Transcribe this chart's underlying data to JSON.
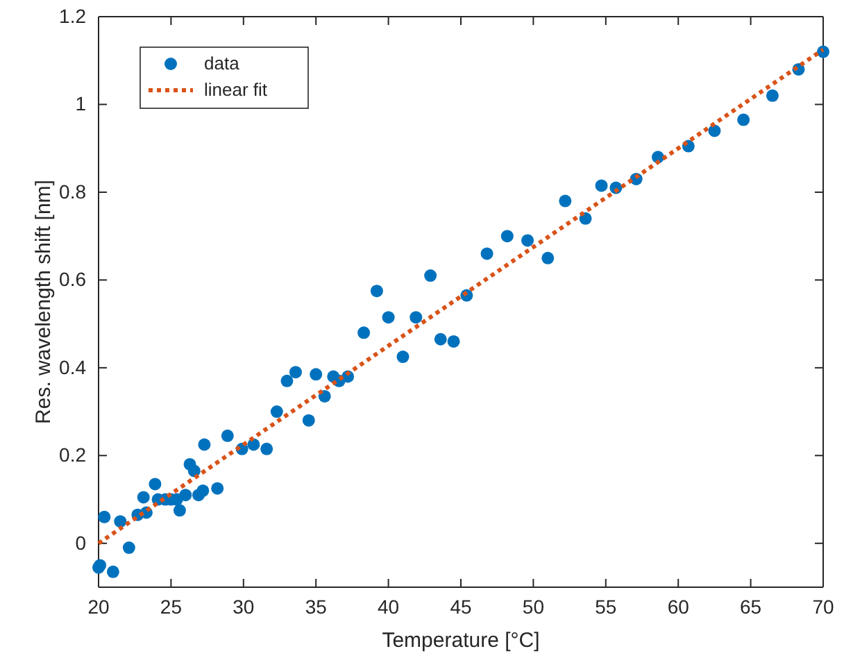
{
  "chart_data": {
    "type": "scatter",
    "xlabel": "Temperature [°C]",
    "ylabel": "Res. wavelength shift [nm]",
    "xlim": [
      20,
      70
    ],
    "ylim": [
      -0.1,
      1.2
    ],
    "xticks": [
      20,
      25,
      30,
      35,
      40,
      45,
      50,
      55,
      60,
      65,
      70
    ],
    "yticks": [
      0,
      0.2,
      0.4,
      0.6,
      0.8,
      1,
      1.2
    ],
    "grid": false,
    "legend": "top left",
    "series": [
      {
        "name": "data",
        "color": "#0072bd",
        "marker": "circle",
        "x": [
          20,
          20.1,
          20.4,
          21,
          21.5,
          22.1,
          22.7,
          23.1,
          23.3,
          23.9,
          24.1,
          24.6,
          25,
          25.4,
          25.6,
          26,
          26.3,
          26.6,
          26.9,
          27.2,
          27.3,
          28.2,
          28.9,
          29.9,
          30.7,
          31.6,
          32.3,
          33,
          33.6,
          34.5,
          35,
          35.6,
          36.2,
          36.6,
          37.2,
          38.3,
          39.2,
          40,
          41,
          41.9,
          42.9,
          43.6,
          44.5,
          45.4,
          46.8,
          48.2,
          49.6,
          51,
          52.2,
          53.6,
          54.7,
          55.7,
          57.1,
          58.6,
          60.7,
          62.5,
          64.5,
          66.5,
          68.3,
          70
        ],
        "values": [
          -0.055,
          -0.05,
          0.06,
          -0.065,
          0.05,
          -0.01,
          0.065,
          0.105,
          0.07,
          0.135,
          0.1,
          0.1,
          0.1,
          0.1,
          0.075,
          0.11,
          0.18,
          0.165,
          0.11,
          0.12,
          0.225,
          0.125,
          0.245,
          0.215,
          0.225,
          0.215,
          0.3,
          0.37,
          0.39,
          0.28,
          0.385,
          0.335,
          0.38,
          0.37,
          0.38,
          0.48,
          0.575,
          0.515,
          0.425,
          0.515,
          0.61,
          0.465,
          0.46,
          0.565,
          0.66,
          0.7,
          0.69,
          0.65,
          0.78,
          0.74,
          0.815,
          0.81,
          0.83,
          0.88,
          0.905,
          0.94,
          0.965,
          1.02,
          1.08,
          1.12
        ]
      },
      {
        "name": "linear fit",
        "type": "line",
        "color": "#d95319",
        "line_style": "dotted",
        "x": [
          20,
          70
        ],
        "values": [
          0,
          1.125
        ]
      }
    ]
  }
}
